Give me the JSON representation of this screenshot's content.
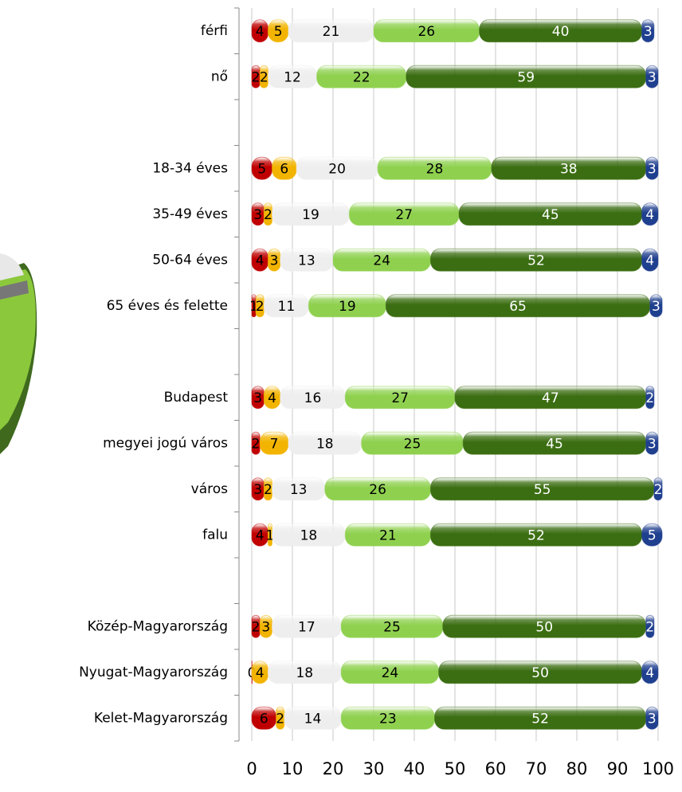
{
  "chart_data": {
    "type": "stacked_barh",
    "categories": [
      "férfi",
      "nő",
      null,
      "18-34 éves",
      "35-49 éves",
      "50-64 éves",
      "65 éves és felette",
      null,
      "Budapest",
      "megyei jogú város",
      "város",
      "falu",
      null,
      "Közép-Magyarország",
      "Nyugat-Magyarország",
      "Kelet-Magyarország"
    ],
    "series": [
      {
        "color": "#c00000",
        "values": [
          4,
          2,
          null,
          5,
          3,
          4,
          1,
          null,
          3,
          2,
          3,
          4,
          null,
          2,
          0,
          6
        ]
      },
      {
        "color": "#f2b400",
        "values": [
          5,
          2,
          null,
          6,
          2,
          3,
          2,
          null,
          4,
          7,
          2,
          1,
          null,
          3,
          4,
          2
        ]
      },
      {
        "color": "#eeeeee",
        "values": [
          21,
          12,
          null,
          20,
          19,
          13,
          11,
          null,
          16,
          18,
          13,
          18,
          null,
          17,
          18,
          14
        ]
      },
      {
        "color": "#8fd14f",
        "values": [
          26,
          22,
          null,
          28,
          27,
          24,
          19,
          null,
          27,
          25,
          26,
          21,
          null,
          25,
          24,
          23
        ]
      },
      {
        "color": "#3b6e12",
        "values": [
          40,
          59,
          null,
          38,
          45,
          52,
          65,
          null,
          47,
          45,
          55,
          52,
          null,
          50,
          50,
          52
        ]
      },
      {
        "color": "#1f3f8f",
        "values": [
          3,
          3,
          null,
          3,
          4,
          4,
          3,
          null,
          2,
          3,
          2,
          5,
          null,
          2,
          4,
          3
        ]
      }
    ],
    "xlim": [
      0,
      100
    ],
    "xticks": [
      0,
      10,
      20,
      30,
      40,
      50,
      60,
      70,
      80,
      90,
      100
    ],
    "grid": true
  }
}
